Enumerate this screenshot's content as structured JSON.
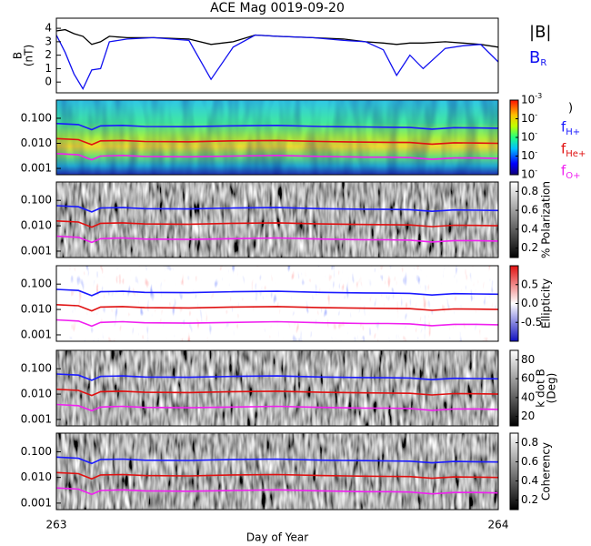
{
  "chart_data": [
    {
      "type": "line",
      "title": "ACE Mag 0019-09-20",
      "ylabel": [
        "B",
        "(nT)"
      ],
      "xlim": [
        263,
        264
      ],
      "xticks": [
        263,
        264
      ],
      "ylim": [
        -0.8,
        4.75
      ],
      "yticks": [
        0,
        1,
        2,
        3,
        4
      ],
      "x": [
        263,
        263.02,
        263.04,
        263.06,
        263.08,
        263.1,
        263.12,
        263.16,
        263.22,
        263.3,
        263.35,
        263.4,
        263.45,
        263.5,
        263.58,
        263.65,
        263.7,
        263.74,
        263.77,
        263.8,
        263.83,
        263.88,
        263.92,
        263.96,
        264
      ],
      "series": [
        {
          "name": "|B|",
          "color": "#000000",
          "values": [
            3.8,
            3.9,
            3.6,
            3.4,
            2.8,
            3.0,
            3.4,
            3.3,
            3.3,
            3.2,
            2.8,
            3.0,
            3.5,
            3.4,
            3.3,
            3.2,
            3.0,
            2.9,
            2.8,
            2.9,
            2.9,
            3.0,
            2.9,
            2.8,
            2.6
          ]
        },
        {
          "name": "BR",
          "color": "#1010f0",
          "values": [
            3.5,
            2.2,
            0.6,
            -0.5,
            0.9,
            1.0,
            3.0,
            3.2,
            3.3,
            3.1,
            0.2,
            2.6,
            3.5,
            3.4,
            3.3,
            3.1,
            3.0,
            2.4,
            0.5,
            2.0,
            1.0,
            2.5,
            2.7,
            2.8,
            1.5
          ]
        }
      ]
    },
    {
      "type": "heatmap",
      "colormap": "jet",
      "ylog": true,
      "xlim": [
        263,
        264
      ],
      "xticks": [
        263,
        264
      ],
      "ylim": [
        0.00056,
        0.53
      ],
      "yticks": [
        0.001,
        {
          "value": 0.01,
          "label": "0.010"
        },
        {
          "value": 0.1,
          "label": "0.100"
        }
      ],
      "colorbar": {
        "label": [
          ")"
        ],
        "lim": [
          1e-07,
          0.001
        ],
        "ticks": [
          {
            "value": 0.001,
            "label": "10-3"
          },
          {
            "value": 0.0001,
            "label": "10-"
          },
          {
            "value": 1e-05,
            "label": "10-"
          },
          {
            "value": 1e-06,
            "label": "10-"
          },
          {
            "value": 1e-07,
            "label": "10-"
          }
        ]
      },
      "x": [
        263,
        263.05,
        263.08,
        263.1,
        263.15,
        263.2,
        263.3,
        263.4,
        263.5,
        263.6,
        263.7,
        263.75,
        263.8,
        263.85,
        263.9,
        263.95,
        264
      ],
      "series": [
        {
          "name": "fH+",
          "color": "#1a1aff",
          "values": [
            0.062,
            0.056,
            0.035,
            0.05,
            0.052,
            0.047,
            0.046,
            0.05,
            0.052,
            0.047,
            0.045,
            0.044,
            0.043,
            0.037,
            0.042,
            0.041,
            0.04
          ]
        },
        {
          "name": "fHe+",
          "color": "#e01010",
          "values": [
            0.0155,
            0.014,
            0.0088,
            0.0125,
            0.013,
            0.0118,
            0.0115,
            0.0125,
            0.013,
            0.0118,
            0.0112,
            0.011,
            0.0108,
            0.0093,
            0.0105,
            0.0103,
            0.01
          ]
        },
        {
          "name": "fO+",
          "color": "#f020f0",
          "values": [
            0.0039,
            0.0035,
            0.0022,
            0.0031,
            0.0033,
            0.003,
            0.0029,
            0.0031,
            0.0033,
            0.003,
            0.0028,
            0.0028,
            0.0027,
            0.0023,
            0.0026,
            0.0026,
            0.0025
          ]
        }
      ]
    },
    {
      "type": "heatmap",
      "colormap": "gray",
      "ylog": true,
      "xlim": [
        263,
        264
      ],
      "xticks": [
        263,
        264
      ],
      "ylim": [
        0.00056,
        0.53
      ],
      "yticks": [
        0.001,
        {
          "value": 0.01,
          "label": "0.010"
        },
        {
          "value": 0.1,
          "label": "0.100"
        }
      ],
      "colorbar": {
        "label": [
          "% Polarization"
        ],
        "lim": [
          0.1,
          0.9
        ],
        "ticks": [
          0.2,
          0.4,
          0.6,
          0.8
        ]
      }
    },
    {
      "type": "heatmap",
      "colormap": "bwr",
      "ylog": true,
      "xlim": [
        263,
        264
      ],
      "xticks": [
        263,
        264
      ],
      "ylim": [
        0.00056,
        0.53
      ],
      "yticks": [
        0.001,
        {
          "value": 0.01,
          "label": "0.010"
        },
        {
          "value": 0.1,
          "label": "0.100"
        }
      ],
      "colorbar": {
        "label": [
          "Ellipticity"
        ],
        "lim": [
          -1,
          1
        ],
        "ticks": [
          -0.5,
          {
            "value": 0,
            "label": "0.0"
          },
          0.5
        ]
      }
    },
    {
      "type": "heatmap",
      "colormap": "gray",
      "ylog": true,
      "xlim": [
        263,
        264
      ],
      "xticks": [
        263,
        264
      ],
      "ylim": [
        0.00056,
        0.53
      ],
      "yticks": [
        0.001,
        {
          "value": 0.01,
          "label": "0.010"
        },
        {
          "value": 0.1,
          "label": "0.100"
        }
      ],
      "colorbar": {
        "label": [
          "k dot B",
          "(Deg)"
        ],
        "lim": [
          10,
          90
        ],
        "ticks": [
          20,
          40,
          60,
          80
        ]
      }
    },
    {
      "type": "heatmap",
      "colormap": "gray",
      "ylog": true,
      "xlim": [
        263,
        264
      ],
      "xticks": [
        263,
        264
      ],
      "xlabel": "Day of Year",
      "ylim": [
        0.00056,
        0.53
      ],
      "yticks": [
        0.001,
        {
          "value": 0.01,
          "label": "0.010"
        },
        {
          "value": 0.1,
          "label": "0.100"
        }
      ],
      "colorbar": {
        "label": [
          "Coherency"
        ],
        "lim": [
          0.1,
          0.9
        ],
        "ticks": [
          0.2,
          0.4,
          0.6,
          0.8
        ]
      }
    }
  ]
}
